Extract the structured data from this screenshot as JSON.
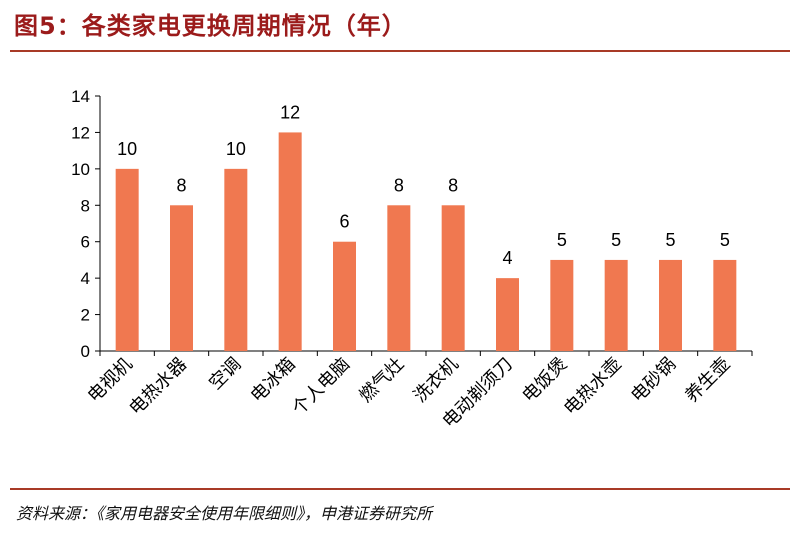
{
  "title": "图5：各类家电更换周期情况（年）",
  "source": "资料来源：《家用电器安全使用年限细则》，申港证券研究所",
  "colors": {
    "bar": "#f07850",
    "title": "#9b1b1b",
    "rule": "#a83a26",
    "axis": "#000000"
  },
  "chart_data": {
    "type": "bar",
    "title": "",
    "xlabel": "",
    "ylabel": "",
    "ylim": [
      0,
      14
    ],
    "yticks": [
      0,
      2,
      4,
      6,
      8,
      10,
      12,
      14
    ],
    "grid": false,
    "categories": [
      "电视机",
      "电热水器",
      "空调",
      "电冰箱",
      "个人电脑",
      "燃气灶",
      "洗衣机",
      "电动剃须刀",
      "电饭煲",
      "电热水壶",
      "电砂锅",
      "养生壶"
    ],
    "values": [
      10,
      8,
      10,
      12,
      6,
      8,
      8,
      4,
      5,
      5,
      5,
      5
    ]
  }
}
